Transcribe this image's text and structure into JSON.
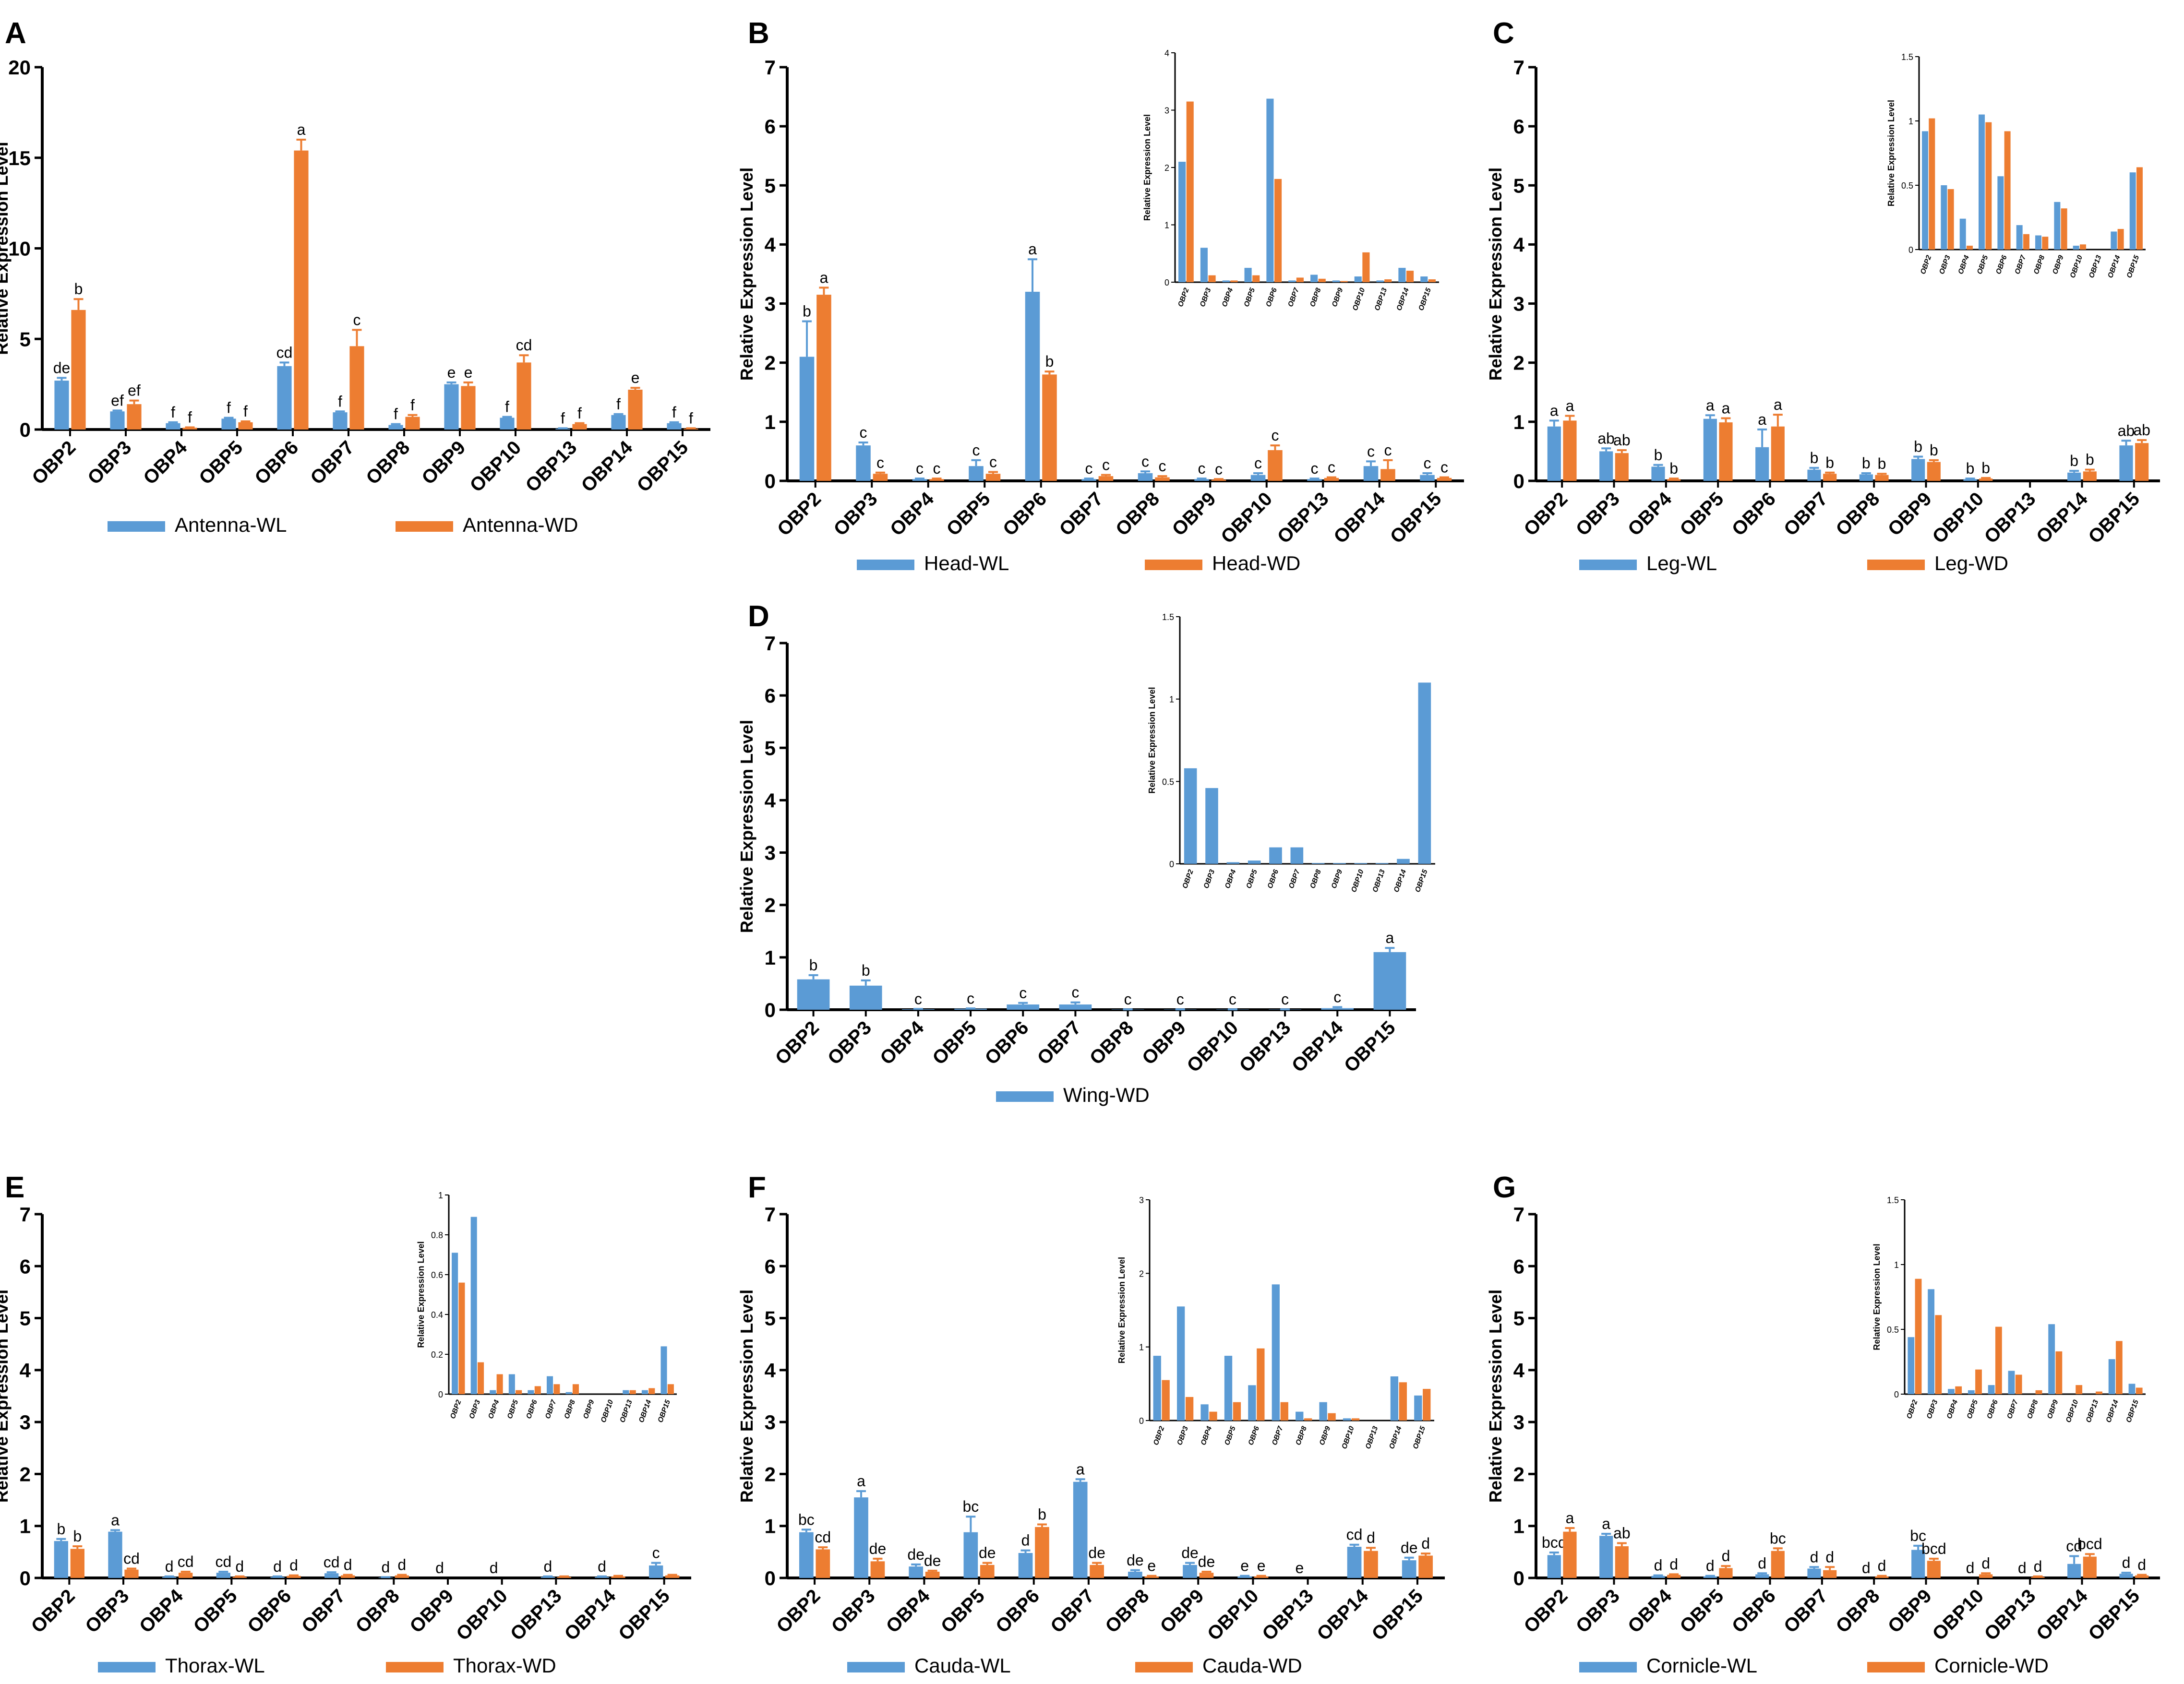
{
  "figure": {
    "colors": {
      "wl": "#5b9bd5",
      "wd": "#ed7d31",
      "axis": "#000000"
    },
    "panels_note": "Relative expression of OBP genes in tissues of winged (WD) and wingless (WL) aphids"
  },
  "chart_data": [
    {
      "panel": "A",
      "type": "bar",
      "categories": [
        "OBP2",
        "OBP3",
        "OBP4",
        "OBP5",
        "OBP6",
        "OBP7",
        "OBP8",
        "OBP9",
        "OBP10",
        "OBP13",
        "OBP14",
        "OBP15"
      ],
      "ylabel": "Relative Expression Level",
      "ylim": [
        0,
        20
      ],
      "yticks": [
        0,
        5,
        10,
        15,
        20
      ],
      "series": [
        {
          "name": "Antenna-WL",
          "color": "#5b9bd5",
          "values": [
            2.7,
            1.0,
            0.35,
            0.6,
            3.5,
            0.95,
            0.25,
            2.5,
            0.65,
            0.05,
            0.8,
            0.35
          ],
          "errors": [
            0.15,
            0.05,
            0.05,
            0.05,
            0.2,
            0.05,
            0.05,
            0.1,
            0.05,
            0.02,
            0.05,
            0.05
          ],
          "labels": [
            "de",
            "ef",
            "f",
            "f",
            "cd",
            "f",
            "f",
            "e",
            "f",
            "f",
            "f",
            "f"
          ]
        },
        {
          "name": "Antenna-WD",
          "color": "#ed7d31",
          "values": [
            6.6,
            1.4,
            0.1,
            0.4,
            15.4,
            4.6,
            0.7,
            2.4,
            3.7,
            0.3,
            2.2,
            0.05
          ],
          "errors": [
            0.6,
            0.2,
            0.02,
            0.05,
            0.6,
            0.9,
            0.1,
            0.2,
            0.4,
            0.05,
            0.1,
            0.02
          ],
          "labels": [
            "b",
            "ef",
            "f",
            "f",
            "a",
            "c",
            "f",
            "e",
            "cd",
            "f",
            "e",
            "f"
          ]
        }
      ]
    },
    {
      "panel": "B",
      "type": "bar",
      "categories": [
        "OBP2",
        "OBP3",
        "OBP4",
        "OBP5",
        "OBP6",
        "OBP7",
        "OBP8",
        "OBP9",
        "OBP10",
        "OBP13",
        "OBP14",
        "OBP15"
      ],
      "ylabel": "Relative Expression Level",
      "ylim": [
        0,
        7
      ],
      "yticks": [
        0,
        1,
        2,
        3,
        4,
        5,
        6,
        7
      ],
      "series": [
        {
          "name": "Head-WL",
          "color": "#5b9bd5",
          "values": [
            2.1,
            0.6,
            0.03,
            0.25,
            3.2,
            0.03,
            0.13,
            0.03,
            0.1,
            0.03,
            0.25,
            0.1
          ],
          "errors": [
            0.6,
            0.05,
            0.01,
            0.1,
            0.55,
            0.01,
            0.03,
            0.01,
            0.03,
            0.01,
            0.08,
            0.03
          ],
          "labels": [
            "b",
            "c",
            "c",
            "c",
            "a",
            "c",
            "c",
            "c",
            "c",
            "c",
            "c",
            "c"
          ]
        },
        {
          "name": "Head-WD",
          "color": "#ed7d31",
          "values": [
            3.15,
            0.12,
            0.03,
            0.12,
            1.8,
            0.08,
            0.06,
            0.02,
            0.52,
            0.05,
            0.2,
            0.05
          ],
          "errors": [
            0.12,
            0.02,
            0.01,
            0.03,
            0.05,
            0.02,
            0.02,
            0.01,
            0.08,
            0.01,
            0.15,
            0.01
          ],
          "labels": [
            "a",
            "c",
            "c",
            "c",
            "b",
            "c",
            "c",
            "c",
            "c",
            "c",
            "c",
            "c"
          ]
        }
      ],
      "inset": {
        "ylim": [
          0,
          4
        ],
        "yticks": [
          0,
          1,
          2,
          3,
          4
        ],
        "ylabel": "Relative Expression Level"
      }
    },
    {
      "panel": "C",
      "type": "bar",
      "categories": [
        "OBP2",
        "OBP3",
        "OBP4",
        "OBP5",
        "OBP6",
        "OBP7",
        "OBP8",
        "OBP9",
        "OBP10",
        "OBP13",
        "OBP14",
        "OBP15"
      ],
      "ylabel": "Relative Expression Level",
      "ylim": [
        0,
        7
      ],
      "yticks": [
        0,
        1,
        2,
        3,
        4,
        5,
        6,
        7
      ],
      "series": [
        {
          "name": "Leg-WL",
          "color": "#5b9bd5",
          "values": [
            0.92,
            0.5,
            0.24,
            1.05,
            0.57,
            0.19,
            0.11,
            0.37,
            0.03,
            0.0,
            0.14,
            0.6
          ],
          "errors": [
            0.1,
            0.05,
            0.03,
            0.06,
            0.3,
            0.03,
            0.02,
            0.04,
            0.01,
            0.0,
            0.03,
            0.08
          ],
          "labels": [
            "a",
            "ab",
            "b",
            "a",
            "a",
            "b",
            "b",
            "b",
            "b",
            "",
            "b",
            "ab"
          ]
        },
        {
          "name": "Leg-WD",
          "color": "#ed7d31",
          "values": [
            1.02,
            0.47,
            0.03,
            0.99,
            0.92,
            0.12,
            0.1,
            0.32,
            0.04,
            0.0,
            0.16,
            0.64
          ],
          "errors": [
            0.08,
            0.05,
            0.01,
            0.07,
            0.2,
            0.02,
            0.02,
            0.03,
            0.01,
            0.0,
            0.03,
            0.05
          ],
          "labels": [
            "a",
            "ab",
            "b",
            "a",
            "a",
            "b",
            "b",
            "b",
            "b",
            "",
            "b",
            "ab"
          ]
        }
      ],
      "inset": {
        "ylim": [
          0,
          1.5
        ],
        "yticks": [
          0.0,
          0.5,
          1.0,
          1.5
        ],
        "ylabel": "Relative Expression Level"
      }
    },
    {
      "panel": "D",
      "type": "bar",
      "categories": [
        "OBP2",
        "OBP3",
        "OBP4",
        "OBP5",
        "OBP6",
        "OBP7",
        "OBP8",
        "OBP9",
        "OBP10",
        "OBP13",
        "OBP14",
        "OBP15"
      ],
      "ylabel": "Relative Expression Level",
      "ylim": [
        0,
        7
      ],
      "yticks": [
        0,
        1,
        2,
        3,
        4,
        5,
        6,
        7
      ],
      "series": [
        {
          "name": "Wing-WD",
          "color": "#5b9bd5",
          "values": [
            0.58,
            0.46,
            0.01,
            0.02,
            0.1,
            0.1,
            0.005,
            0.005,
            0.005,
            0.005,
            0.03,
            1.1
          ],
          "errors": [
            0.08,
            0.1,
            0.005,
            0.005,
            0.03,
            0.04,
            0.002,
            0.002,
            0.002,
            0.002,
            0.02,
            0.08
          ],
          "labels": [
            "b",
            "b",
            "c",
            "c",
            "c",
            "c",
            "c",
            "c",
            "c",
            "c",
            "c",
            "a"
          ]
        }
      ],
      "inset": {
        "ylim": [
          0,
          1.5
        ],
        "yticks": [
          0.0,
          0.5,
          1.0,
          1.5
        ],
        "ylabel": "Relative Expression Level"
      }
    },
    {
      "panel": "E",
      "type": "bar",
      "categories": [
        "OBP2",
        "OBP3",
        "OBP4",
        "OBP5",
        "OBP6",
        "OBP7",
        "OBP8",
        "OBP9",
        "OBP10",
        "OBP13",
        "OBP14",
        "OBP15"
      ],
      "ylabel": "Relative Expression Level",
      "ylim": [
        0,
        7
      ],
      "yticks": [
        0,
        1,
        2,
        3,
        4,
        5,
        6,
        7
      ],
      "series": [
        {
          "name": "Thorax-WL",
          "color": "#5b9bd5",
          "values": [
            0.71,
            0.89,
            0.02,
            0.1,
            0.02,
            0.09,
            0.01,
            0.0,
            0.0,
            0.02,
            0.02,
            0.24
          ],
          "errors": [
            0.04,
            0.03,
            0.01,
            0.02,
            0.01,
            0.02,
            0.005,
            0.0,
            0.0,
            0.01,
            0.01,
            0.05
          ],
          "labels": [
            "b",
            "a",
            "d",
            "cd",
            "d",
            "cd",
            "d",
            "d",
            "d",
            "d",
            "d",
            "c"
          ]
        },
        {
          "name": "Thorax-WD",
          "color": "#ed7d31",
          "values": [
            0.56,
            0.16,
            0.1,
            0.02,
            0.04,
            0.05,
            0.05,
            0.0,
            0.0,
            0.02,
            0.03,
            0.05
          ],
          "errors": [
            0.05,
            0.02,
            0.02,
            0.01,
            0.01,
            0.01,
            0.01,
            0.0,
            0.0,
            0.01,
            0.01,
            0.01
          ],
          "labels": [
            "b",
            "cd",
            "cd",
            "d",
            "d",
            "d",
            "d",
            "",
            "",
            "",
            "",
            ""
          ]
        }
      ],
      "inset": {
        "ylim": [
          0,
          1.0
        ],
        "yticks": [
          0.0,
          0.2,
          0.4,
          0.6,
          0.8,
          1.0
        ],
        "ylabel": "Relative Expression Level"
      }
    },
    {
      "panel": "F",
      "type": "bar",
      "categories": [
        "OBP2",
        "OBP3",
        "OBP4",
        "OBP5",
        "OBP6",
        "OBP7",
        "OBP8",
        "OBP9",
        "OBP10",
        "OBP13",
        "OBP14",
        "OBP15"
      ],
      "ylabel": "Relative Expression Level",
      "ylim": [
        0,
        7
      ],
      "yticks": [
        0,
        1,
        2,
        3,
        4,
        5,
        6,
        7
      ],
      "series": [
        {
          "name": "Cauda-WL",
          "color": "#5b9bd5",
          "values": [
            0.88,
            1.55,
            0.22,
            0.88,
            0.48,
            1.85,
            0.12,
            0.25,
            0.03,
            0.0,
            0.6,
            0.34
          ],
          "errors": [
            0.05,
            0.12,
            0.04,
            0.3,
            0.05,
            0.05,
            0.03,
            0.04,
            0.01,
            0.0,
            0.04,
            0.05
          ],
          "labels": [
            "bc",
            "a",
            "de",
            "bc",
            "d",
            "a",
            "de",
            "de",
            "e",
            "e",
            "cd",
            "de"
          ]
        },
        {
          "name": "Cauda-WD",
          "color": "#ed7d31",
          "values": [
            0.55,
            0.32,
            0.12,
            0.25,
            0.98,
            0.25,
            0.03,
            0.1,
            0.03,
            0.0,
            0.52,
            0.43
          ],
          "errors": [
            0.04,
            0.05,
            0.02,
            0.04,
            0.05,
            0.04,
            0.01,
            0.02,
            0.01,
            0.0,
            0.06,
            0.04
          ],
          "labels": [
            "cd",
            "de",
            "de",
            "de",
            "b",
            "de",
            "e",
            "de",
            "e",
            "",
            "d",
            "d"
          ]
        }
      ],
      "inset": {
        "ylim": [
          0,
          3
        ],
        "yticks": [
          0,
          1,
          2,
          3
        ],
        "ylabel": "Relative Expression Level"
      }
    },
    {
      "panel": "G",
      "type": "bar",
      "categories": [
        "OBP2",
        "OBP3",
        "OBP4",
        "OBP5",
        "OBP6",
        "OBP7",
        "OBP8",
        "OBP9",
        "OBP10",
        "OBP13",
        "OBP14",
        "OBP15"
      ],
      "ylabel": "Relative Expression Level",
      "ylim": [
        0,
        7
      ],
      "yticks": [
        0,
        1,
        2,
        3,
        4,
        5,
        6,
        7
      ],
      "series": [
        {
          "name": "Cornicle-WL",
          "color": "#5b9bd5",
          "values": [
            0.44,
            0.81,
            0.04,
            0.03,
            0.07,
            0.18,
            0.0,
            0.54,
            0.0,
            0.0,
            0.27,
            0.08
          ],
          "errors": [
            0.05,
            0.04,
            0.01,
            0.01,
            0.02,
            0.03,
            0.0,
            0.08,
            0.0,
            0.0,
            0.15,
            0.02
          ],
          "labels": [
            "bcd",
            "a",
            "d",
            "d",
            "d",
            "d",
            "d",
            "bc",
            "d",
            "d",
            "cd",
            "d"
          ]
        },
        {
          "name": "Cornicle-WD",
          "color": "#ed7d31",
          "values": [
            0.89,
            0.61,
            0.06,
            0.19,
            0.52,
            0.15,
            0.03,
            0.33,
            0.07,
            0.02,
            0.41,
            0.05
          ],
          "errors": [
            0.07,
            0.06,
            0.01,
            0.04,
            0.05,
            0.06,
            0.01,
            0.04,
            0.02,
            0.01,
            0.05,
            0.01
          ],
          "labels": [
            "a",
            "ab",
            "d",
            "d",
            "bc",
            "d",
            "d",
            "bcd",
            "d",
            "d",
            "bcd",
            "d"
          ]
        }
      ],
      "inset": {
        "ylim": [
          0,
          1.5
        ],
        "yticks": [
          0.0,
          0.5,
          1.0,
          1.5
        ],
        "ylabel": "Relative Expression Level"
      }
    }
  ]
}
